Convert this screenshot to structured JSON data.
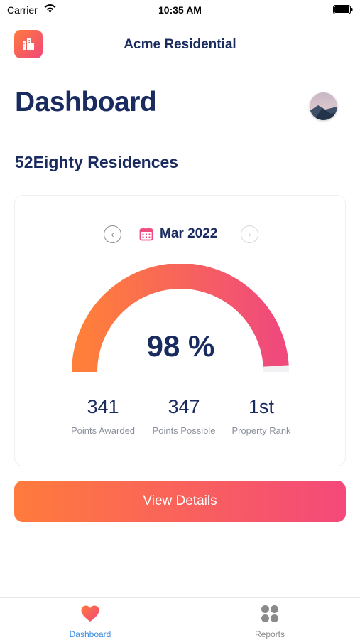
{
  "status_bar": {
    "carrier": "Carrier",
    "time": "10:35 AM"
  },
  "header": {
    "app_title": "Acme Residential",
    "page_title": "Dashboard",
    "logo_icon": "building-icon"
  },
  "property": {
    "name": "52Eighty Residences"
  },
  "score_card": {
    "prev_label": "‹",
    "next_label": "›",
    "month": "Mar 2022",
    "gauge": {
      "percent": 98,
      "display": "98 %"
    },
    "stats": [
      {
        "value": "341",
        "label": "Points Awarded"
      },
      {
        "value": "347",
        "label": "Points Possible"
      },
      {
        "value": "1st",
        "label": "Property Rank"
      }
    ]
  },
  "actions": {
    "view_details_label": "View Details"
  },
  "tab_bar": {
    "tabs": [
      {
        "label": "Dashboard",
        "icon": "heart-icon",
        "active": true
      },
      {
        "label": "Reports",
        "icon": "grid-icon",
        "active": false
      }
    ]
  },
  "colors": {
    "primary_text": "#1a2b5f",
    "gradient_start": "#ff7b3c",
    "gradient_end": "#f4497a",
    "active_tab": "#3a8de0"
  }
}
